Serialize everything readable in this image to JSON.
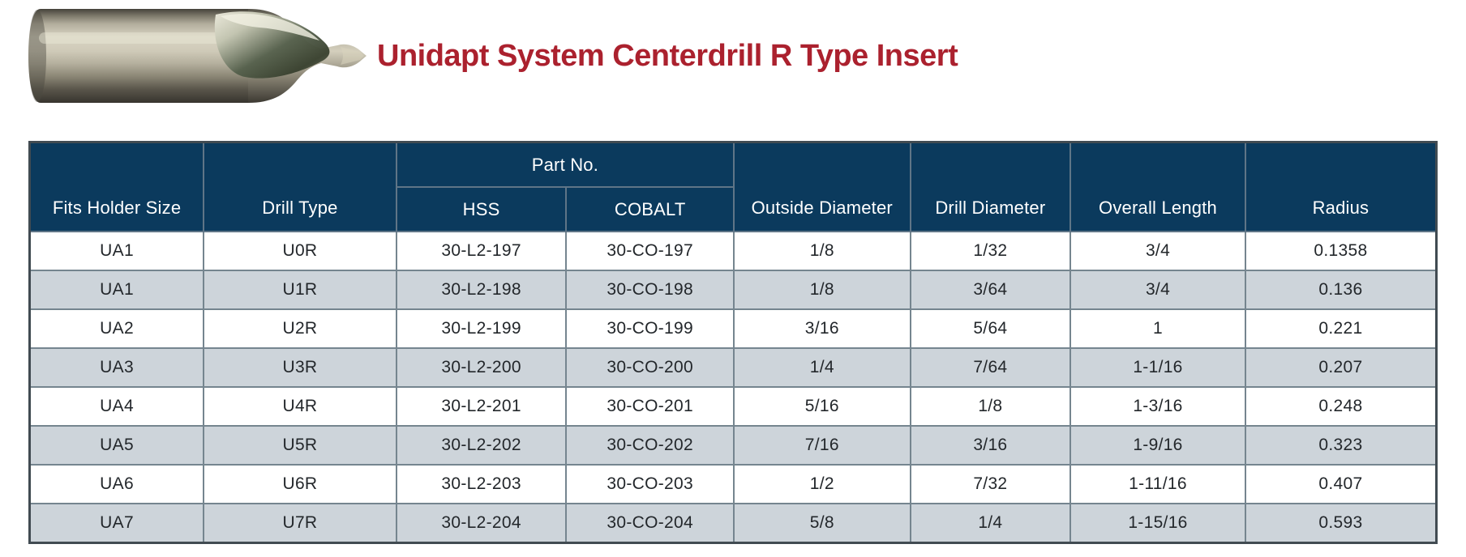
{
  "title": "Unidapt System Centerdrill R Type Insert",
  "product_image": {
    "name": "centerdrill-photo",
    "description": "Metallic centerdrill R type insert bit, pointing right"
  },
  "table": {
    "group_header": "Part No.",
    "columns": [
      "Fits Holder Size",
      "Drill Type",
      "HSS",
      "COBALT",
      "Outside Diameter",
      "Drill Diameter",
      "Overall Length",
      "Radius"
    ],
    "rows": [
      [
        "UA1",
        "U0R",
        "30-L2-197",
        "30-CO-197",
        "1/8",
        "1/32",
        "3/4",
        "0.1358"
      ],
      [
        "UA1",
        "U1R",
        "30-L2-198",
        "30-CO-198",
        "1/8",
        "3/64",
        "3/4",
        "0.136"
      ],
      [
        "UA2",
        "U2R",
        "30-L2-199",
        "30-CO-199",
        "3/16",
        "5/64",
        "1",
        "0.221"
      ],
      [
        "UA3",
        "U3R",
        "30-L2-200",
        "30-CO-200",
        "1/4",
        "7/64",
        "1-1/16",
        "0.207"
      ],
      [
        "UA4",
        "U4R",
        "30-L2-201",
        "30-CO-201",
        "5/16",
        "1/8",
        "1-3/16",
        "0.248"
      ],
      [
        "UA5",
        "U5R",
        "30-L2-202",
        "30-CO-202",
        "7/16",
        "3/16",
        "1-9/16",
        "0.323"
      ],
      [
        "UA6",
        "U6R",
        "30-L2-203",
        "30-CO-203",
        "1/2",
        "7/32",
        "1-11/16",
        "0.407"
      ],
      [
        "UA7",
        "U7R",
        "30-L2-204",
        "30-CO-204",
        "5/8",
        "1/4",
        "1-15/16",
        "0.593"
      ]
    ]
  },
  "colors": {
    "header_bg": "#0b3a5d",
    "row_alt_bg": "#cdd4da",
    "title_red": "#ab212e",
    "cell_border": "#75858f",
    "outer_border": "#414b52",
    "text": "#23272b"
  }
}
